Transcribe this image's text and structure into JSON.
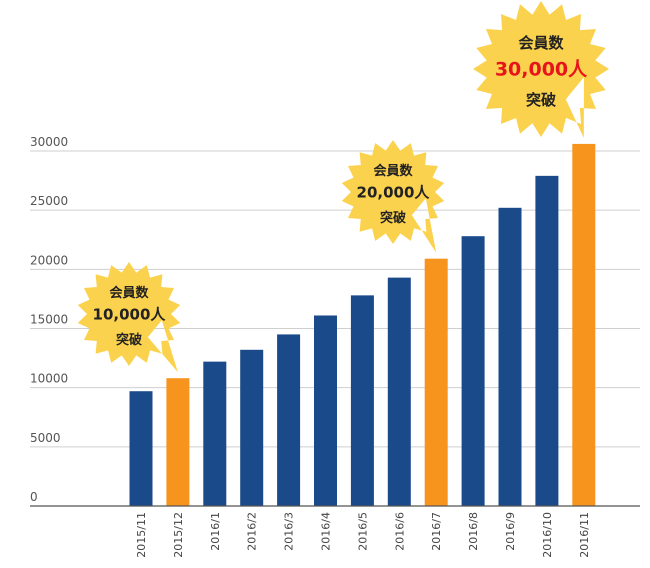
{
  "chart_data": {
    "type": "bar",
    "categories": [
      "2015/11",
      "2015/12",
      "2016/1",
      "2016/2",
      "2016/3",
      "2016/4",
      "2016/5",
      "2016/6",
      "2016/7",
      "2016/8",
      "2016/9",
      "2016/10",
      "2016/11"
    ],
    "values": [
      9700,
      10800,
      12200,
      13200,
      14500,
      16100,
      17800,
      19300,
      20900,
      22800,
      25200,
      27900,
      30600
    ],
    "highlight_indices": [
      1,
      8,
      12
    ],
    "colors": {
      "default": "#1a4a8a",
      "highlight": "#f7941d",
      "grid": "#cfcfcf",
      "axis": "#555555"
    },
    "ylim": [
      0,
      30000
    ],
    "yticks": [
      "0",
      "5000",
      "10000",
      "15000",
      "20000",
      "25000",
      "30000"
    ],
    "grid": true,
    "title": "",
    "xlabel": "",
    "ylabel": ""
  },
  "callouts": [
    {
      "bar_index": 1,
      "line1": "会員数",
      "line2": "10,000人",
      "line3": "突破",
      "accent": "#222222"
    },
    {
      "bar_index": 8,
      "line1": "会員数",
      "line2": "20,000人",
      "line3": "突破",
      "accent": "#222222"
    },
    {
      "bar_index": 12,
      "line1": "会員数",
      "line2": "30,000人",
      "line3": "突破",
      "accent": "#e8141b"
    }
  ],
  "burst_color": "#fbd24e"
}
